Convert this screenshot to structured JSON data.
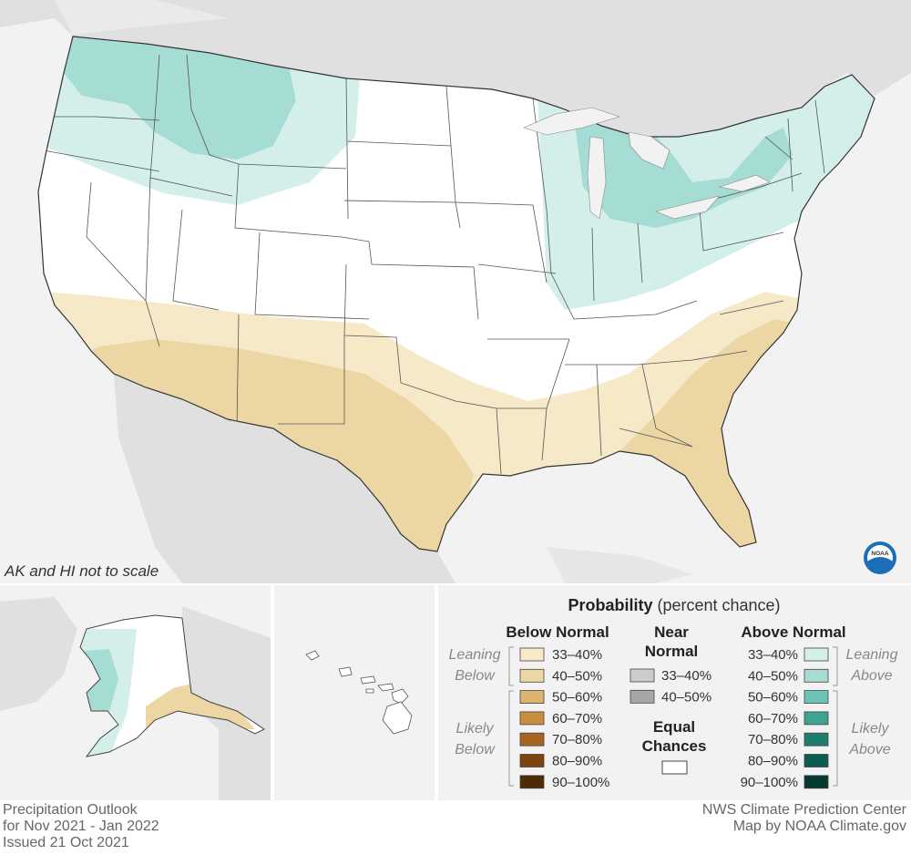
{
  "note": "AK and HI not to scale",
  "legend": {
    "title_bold": "Probability",
    "title_rest": "(percent chance)",
    "below_header": "Below Normal",
    "near_header_1": "Near",
    "near_header_2": "Normal",
    "above_header": "Above Normal",
    "leaning": "Leaning",
    "below": "Below",
    "above": "Above",
    "likely": "Likely",
    "equal_1": "Equal",
    "equal_2": "Chances",
    "below_bins": [
      {
        "label": "33–40%",
        "color": "#f6e9c8"
      },
      {
        "label": "40–50%",
        "color": "#ecd7a4"
      },
      {
        "label": "50–60%",
        "color": "#dcb36f"
      },
      {
        "label": "60–70%",
        "color": "#c98d3e"
      },
      {
        "label": "70–80%",
        "color": "#a8641f"
      },
      {
        "label": "80–90%",
        "color": "#7d450e"
      },
      {
        "label": "90–100%",
        "color": "#4e2a06"
      }
    ],
    "near_bins": [
      {
        "label": "33–40%",
        "color": "#cccccc"
      },
      {
        "label": "40–50%",
        "color": "#a6a6a6"
      }
    ],
    "above_bins": [
      {
        "label": "33–40%",
        "color": "#d4eeea"
      },
      {
        "label": "40–50%",
        "color": "#a5dcd3"
      },
      {
        "label": "50–60%",
        "color": "#6dc4b6"
      },
      {
        "label": "60–70%",
        "color": "#3fa294"
      },
      {
        "label": "70–80%",
        "color": "#1f7d70"
      },
      {
        "label": "80–90%",
        "color": "#0e5b51"
      },
      {
        "label": "90–100%",
        "color": "#053a33"
      }
    ]
  },
  "footer": {
    "title": "Precipitation Outlook",
    "period": "for Nov 2021 - Jan 2022",
    "issued": "Issued 21 Oct 2021",
    "agency": "NWS Climate Prediction Center",
    "credit": "Map by NOAA Climate.gov"
  },
  "logo_text": "NOAA"
}
